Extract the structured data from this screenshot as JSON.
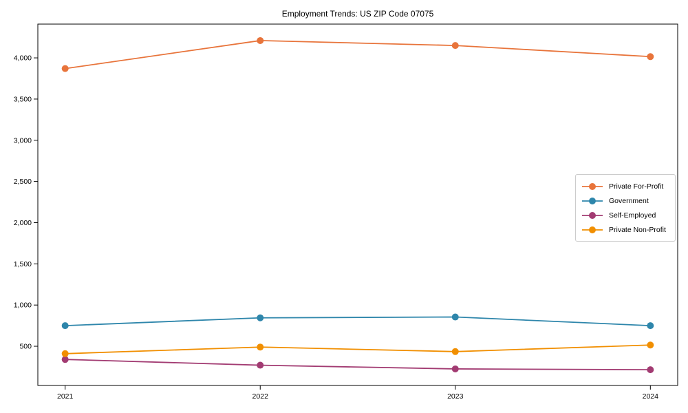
{
  "chart_data": {
    "type": "line",
    "title": "Employment Trends: US ZIP Code 07075",
    "x": [
      2021,
      2022,
      2023,
      2024
    ],
    "categories": [
      "2021",
      "2022",
      "2023",
      "2024"
    ],
    "series": [
      {
        "name": "Private For-Profit",
        "color": "#E8743B",
        "values": [
          3870,
          4210,
          4150,
          4015
        ]
      },
      {
        "name": "Government",
        "color": "#2E86AB",
        "values": [
          750,
          845,
          855,
          750
        ]
      },
      {
        "name": "Self-Employed",
        "color": "#A23B72",
        "values": [
          340,
          270,
          225,
          215
        ]
      },
      {
        "name": "Private Non-Profit",
        "color": "#F18F01",
        "values": [
          410,
          490,
          435,
          515
        ]
      }
    ],
    "xlabel": "",
    "ylabel": "",
    "xlim": [
      2020.86,
      2024.14
    ],
    "ylim": [
      24,
      4410
    ],
    "yticks": [
      500,
      1000,
      1500,
      2000,
      2500,
      3000,
      3500,
      4000
    ],
    "ytick_labels": [
      "500",
      "1,000",
      "1,500",
      "2,000",
      "2,500",
      "3,000",
      "3,500",
      "4,000"
    ],
    "grid": false,
    "legend_position": "center right",
    "marker": "circle",
    "axis_color": "#000000",
    "tick_label_color": "#000000"
  }
}
